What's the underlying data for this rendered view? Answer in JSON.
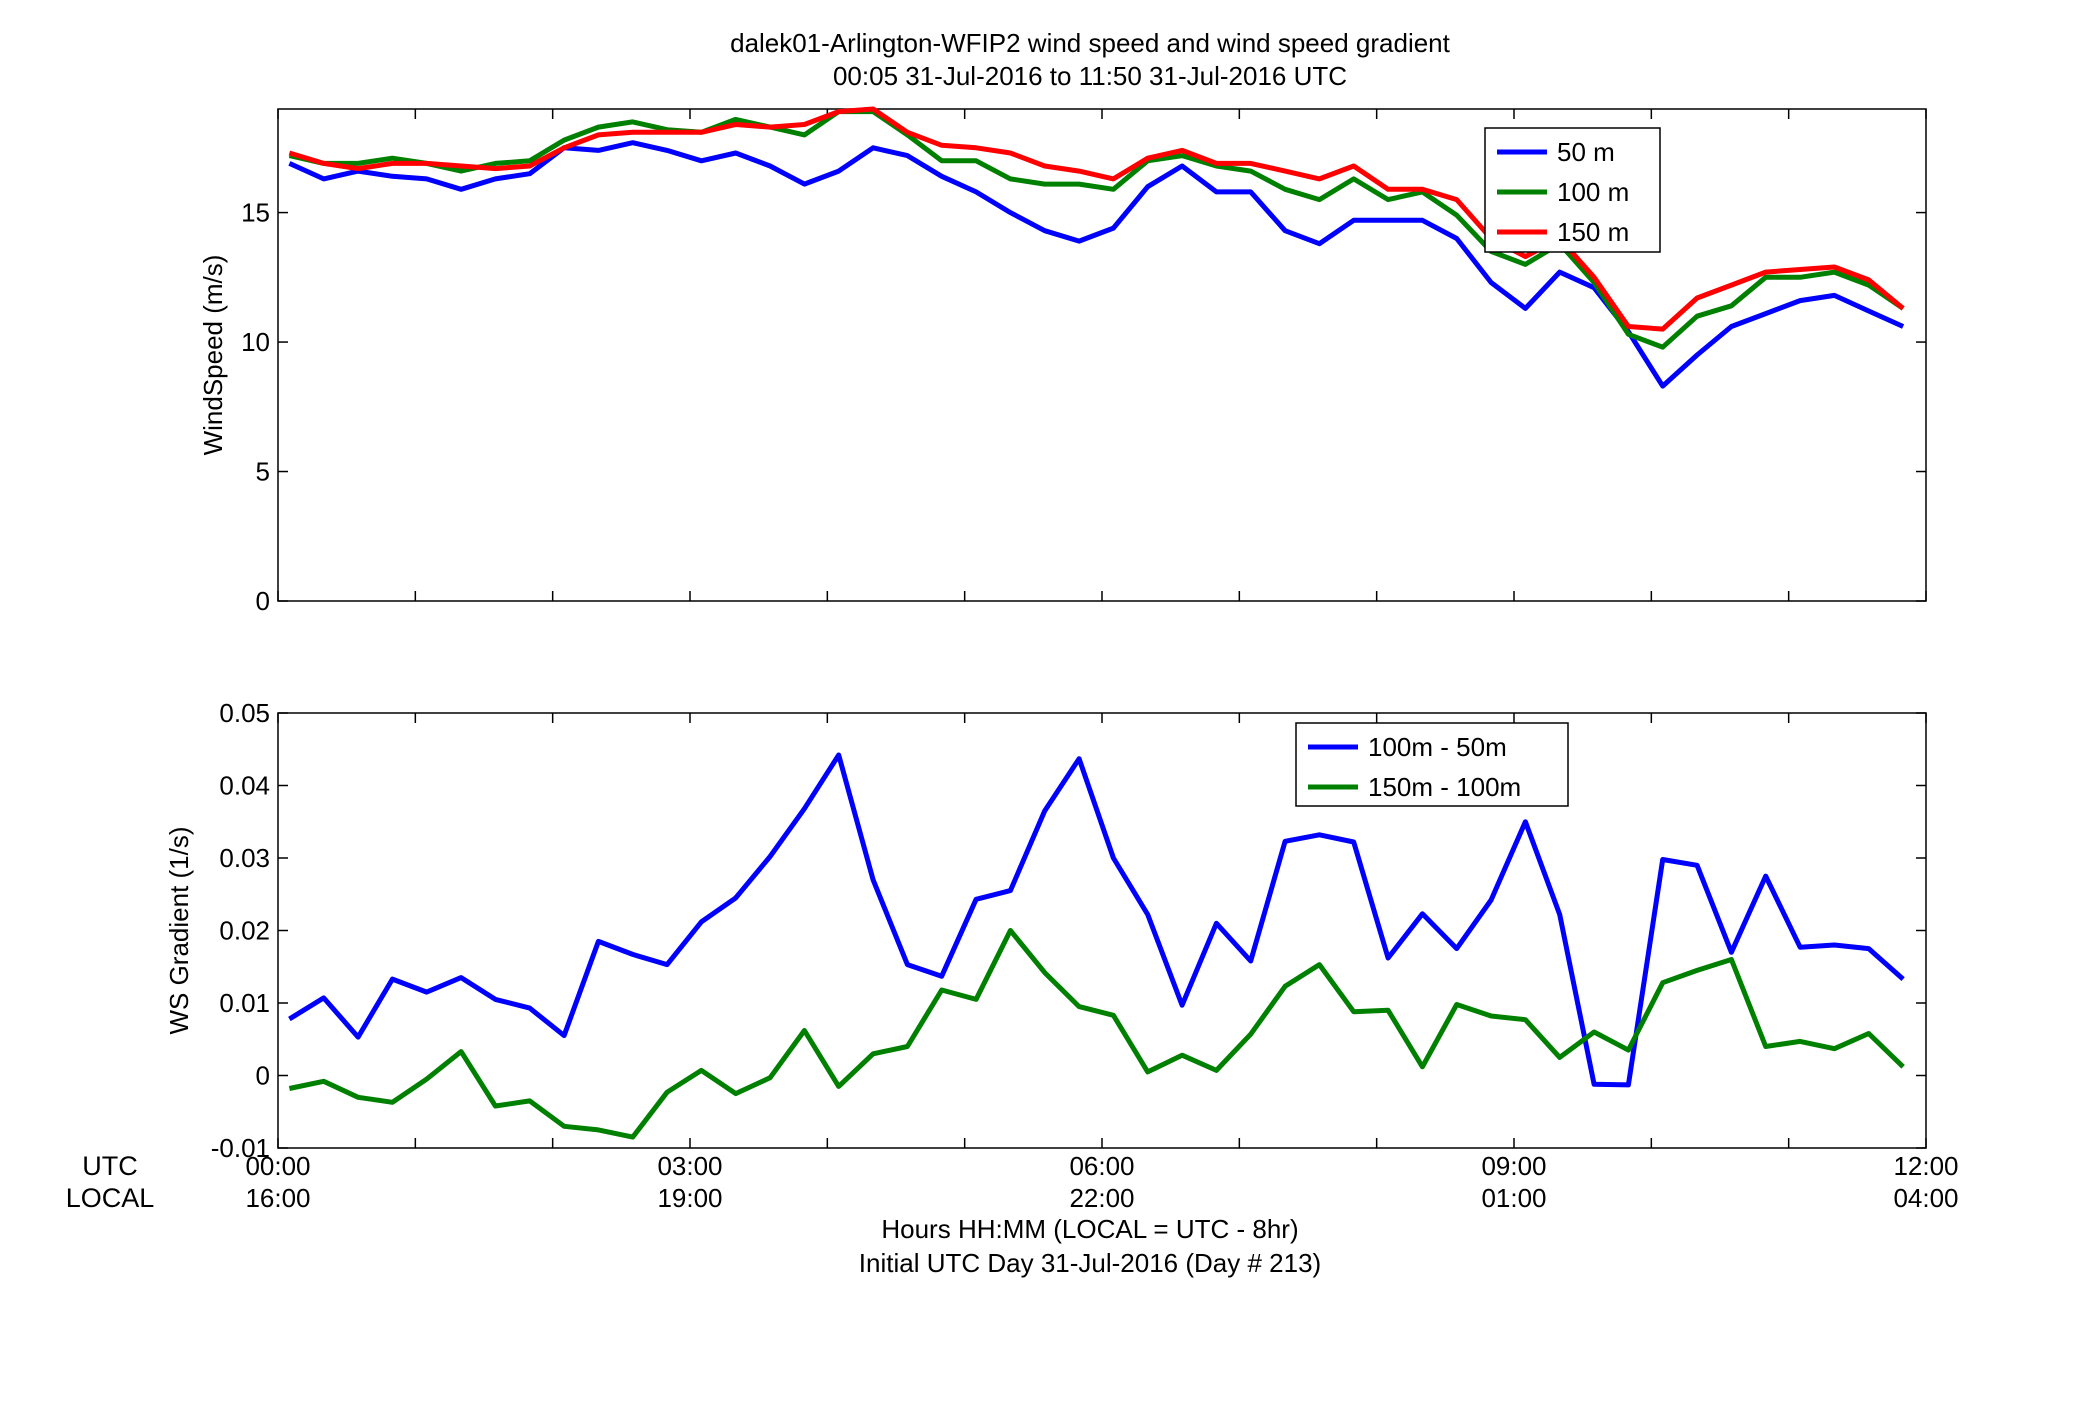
{
  "figure": {
    "title_line1": "dalek01-Arlington-WFIP2  wind speed and wind speed gradient",
    "title_line2": "00:05 31-Jul-2016 to 11:50 31-Jul-2016  UTC",
    "row_label_utc": "UTC",
    "row_label_local": "LOCAL",
    "xlabel_line1": "Hours HH:MM  (LOCAL = UTC - 8hr)",
    "xlabel_line2": "Initial UTC Day 31-Jul-2016 (Day # 213)",
    "xticks_utc": [
      "00:00",
      "03:00",
      "06:00",
      "09:00",
      "12:00"
    ],
    "xticks_local": [
      "16:00",
      "19:00",
      "22:00",
      "01:00",
      "04:00"
    ]
  },
  "chart_data": [
    {
      "type": "line",
      "ylabel": "WindSpeed (m/s)",
      "xlim_hours": [
        0,
        12
      ],
      "ylim": [
        0,
        19
      ],
      "yticks": [
        0,
        5,
        10,
        15
      ],
      "ytick_labels": [
        "0",
        "5",
        "10",
        "15"
      ],
      "legend_position": "top-right",
      "x_hours": [
        0.083,
        0.333,
        0.583,
        0.833,
        1.083,
        1.333,
        1.583,
        1.833,
        2.083,
        2.333,
        2.583,
        2.833,
        3.083,
        3.333,
        3.583,
        3.833,
        4.083,
        4.333,
        4.583,
        4.833,
        5.083,
        5.333,
        5.583,
        5.833,
        6.083,
        6.333,
        6.583,
        6.833,
        7.083,
        7.333,
        7.583,
        7.833,
        8.083,
        8.333,
        8.583,
        8.833,
        9.083,
        9.333,
        9.583,
        9.833,
        10.083,
        10.333,
        10.583,
        10.833,
        11.083,
        11.333,
        11.583,
        11.833
      ],
      "series": [
        {
          "name": "50 m",
          "color": "#0000ff",
          "values": [
            16.9,
            16.3,
            16.6,
            16.4,
            16.3,
            15.9,
            16.3,
            16.5,
            17.5,
            17.4,
            17.7,
            17.4,
            17.0,
            17.3,
            16.8,
            16.1,
            16.6,
            17.5,
            17.2,
            16.4,
            15.8,
            15.0,
            14.3,
            13.9,
            14.4,
            16.0,
            16.8,
            15.8,
            15.8,
            14.3,
            13.8,
            14.7,
            14.7,
            14.7,
            14.0,
            12.3,
            11.3,
            12.7,
            12.1,
            10.4,
            8.3,
            9.5,
            10.6,
            11.1,
            11.6,
            11.8,
            11.2,
            10.6
          ]
        },
        {
          "name": "100 m",
          "color": "#008000",
          "values": [
            17.2,
            16.9,
            16.9,
            17.1,
            16.9,
            16.6,
            16.9,
            17.0,
            17.8,
            18.3,
            18.5,
            18.2,
            18.1,
            18.6,
            18.3,
            18.0,
            18.9,
            18.9,
            18.0,
            17.0,
            17.0,
            16.3,
            16.1,
            16.1,
            15.9,
            17.0,
            17.2,
            16.8,
            16.6,
            15.9,
            15.5,
            16.3,
            15.5,
            15.8,
            14.9,
            13.5,
            13.0,
            13.8,
            12.3,
            10.3,
            9.8,
            11.0,
            11.4,
            12.5,
            12.5,
            12.7,
            12.2,
            11.3
          ]
        },
        {
          "name": "150 m",
          "color": "#ff0000",
          "values": [
            17.3,
            16.9,
            16.7,
            16.9,
            16.9,
            16.8,
            16.7,
            16.8,
            17.5,
            18.0,
            18.1,
            18.1,
            18.1,
            18.4,
            18.3,
            18.4,
            18.9,
            19.0,
            18.1,
            17.6,
            17.5,
            17.3,
            16.8,
            16.6,
            16.3,
            17.1,
            17.4,
            16.9,
            16.9,
            16.6,
            16.3,
            16.8,
            15.9,
            15.9,
            15.5,
            14.0,
            13.3,
            14.0,
            12.5,
            10.6,
            10.5,
            11.7,
            12.2,
            12.7,
            12.8,
            12.9,
            12.4,
            11.3
          ]
        }
      ]
    },
    {
      "type": "line",
      "ylabel": "WS Gradient (1/s)",
      "xlim_hours": [
        0,
        12
      ],
      "ylim": [
        -0.01,
        0.05
      ],
      "yticks": [
        -0.01,
        0,
        0.01,
        0.02,
        0.03,
        0.04,
        0.05
      ],
      "ytick_labels": [
        "-0.01",
        "0",
        "0.01",
        "0.02",
        "0.03",
        "0.04",
        "0.05"
      ],
      "legend_position": "top-right",
      "x_hours": [
        0.083,
        0.333,
        0.583,
        0.833,
        1.083,
        1.333,
        1.583,
        1.833,
        2.083,
        2.333,
        2.583,
        2.833,
        3.083,
        3.333,
        3.583,
        3.833,
        4.083,
        4.333,
        4.583,
        4.833,
        5.083,
        5.333,
        5.583,
        5.833,
        6.083,
        6.333,
        6.583,
        6.833,
        7.083,
        7.333,
        7.583,
        7.833,
        8.083,
        8.333,
        8.583,
        8.833,
        9.083,
        9.333,
        9.583,
        9.833,
        10.083,
        10.333,
        10.583,
        10.833,
        11.083,
        11.333,
        11.583,
        11.833
      ],
      "series": [
        {
          "name": "100m - 50m",
          "color": "#0000ff",
          "values": [
            0.0078,
            0.0107,
            0.0053,
            0.0133,
            0.0115,
            0.0135,
            0.0105,
            0.0093,
            0.0055,
            0.0185,
            0.0167,
            0.0153,
            0.0212,
            0.0245,
            0.0302,
            0.0368,
            0.0442,
            0.027,
            0.0153,
            0.0137,
            0.0243,
            0.0255,
            0.0365,
            0.0437,
            0.03,
            0.0222,
            0.0097,
            0.021,
            0.0158,
            0.0323,
            0.0332,
            0.0322,
            0.0162,
            0.0223,
            0.0175,
            0.0242,
            0.035,
            0.0222,
            -0.0012,
            -0.0013,
            0.0298,
            0.029,
            0.017,
            0.0275,
            0.0177,
            0.018,
            0.0175,
            0.0133
          ]
        },
        {
          "name": "150m - 100m",
          "color": "#008000",
          "values": [
            -0.0018,
            -0.0008,
            -0.003,
            -0.0037,
            -0.0005,
            0.0033,
            -0.0042,
            -0.0035,
            -0.007,
            -0.0075,
            -0.0085,
            -0.0023,
            0.0007,
            -0.0025,
            -0.0003,
            0.0062,
            -0.0015,
            0.003,
            0.004,
            0.0118,
            0.0105,
            0.02,
            0.0142,
            0.0095,
            0.0083,
            0.0005,
            0.0028,
            0.0007,
            0.0057,
            0.0123,
            0.0153,
            0.0088,
            0.009,
            0.0012,
            0.0098,
            0.0082,
            0.0077,
            0.0025,
            0.006,
            0.0035,
            0.0128,
            0.0145,
            0.016,
            0.004,
            0.0047,
            0.0037,
            0.0058,
            0.0012
          ]
        }
      ]
    }
  ]
}
